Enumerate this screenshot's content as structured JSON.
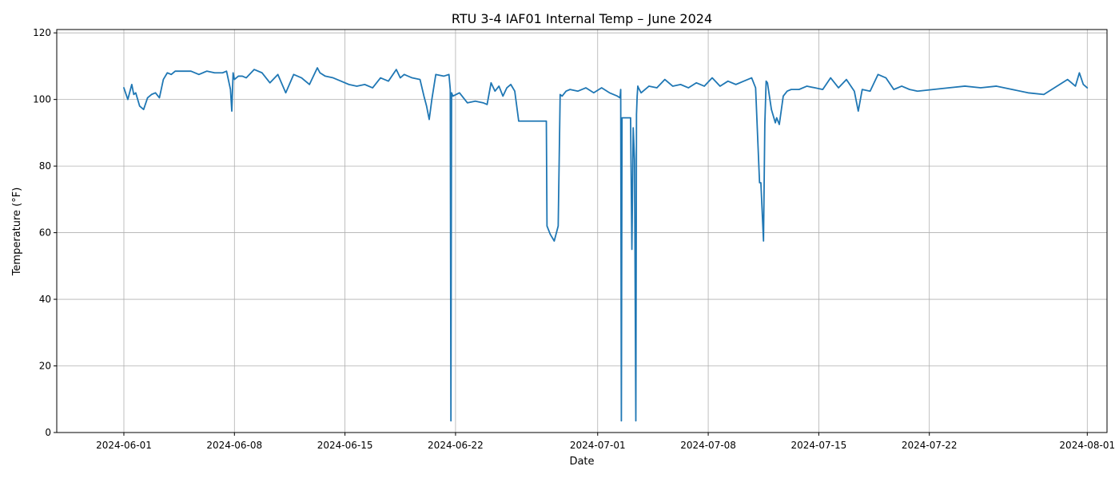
{
  "chart_data": {
    "type": "line",
    "title": "RTU 3-4 IAF01 Internal Temp – June 2024",
    "xlabel": "Date",
    "ylabel": "Temperature (°F)",
    "xlim": [
      "2024-05-27T18:00",
      "2024-08-02T06:00"
    ],
    "ylim": [
      0,
      121
    ],
    "grid": true,
    "color": "#1f77b4",
    "x_ticks": [
      "2024-06-01",
      "2024-06-08",
      "2024-06-15",
      "2024-06-22",
      "2024-07-01",
      "2024-07-08",
      "2024-07-15",
      "2024-07-22",
      "2024-08-01"
    ],
    "y_ticks": [
      0,
      20,
      40,
      60,
      80,
      100,
      120
    ],
    "series": [
      {
        "x": [
          "2024-06-01T00:00",
          "2024-06-01T06:00",
          "2024-06-01T12:00",
          "2024-06-01T15:00",
          "2024-06-01T18:00",
          "2024-06-02T00:00",
          "2024-06-02T06:00",
          "2024-06-02T12:00",
          "2024-06-02T18:00",
          "2024-06-03T00:00",
          "2024-06-03T06:00",
          "2024-06-03T12:00",
          "2024-06-03T18:00",
          "2024-06-04T00:00",
          "2024-06-04T06:00",
          "2024-06-04T18:00",
          "2024-06-05T06:00",
          "2024-06-05T18:00",
          "2024-06-06T06:00",
          "2024-06-06T18:00",
          "2024-06-07T06:00",
          "2024-06-07T12:00",
          "2024-06-07T18:00",
          "2024-06-07T20:00",
          "2024-06-07T22:00",
          "2024-06-08T00:00",
          "2024-06-08T06:00",
          "2024-06-08T12:00",
          "2024-06-08T18:00",
          "2024-06-09T06:00",
          "2024-06-09T18:00",
          "2024-06-10T06:00",
          "2024-06-10T18:00",
          "2024-06-11T06:00",
          "2024-06-11T18:00",
          "2024-06-12T06:00",
          "2024-06-12T18:00",
          "2024-06-13T06:00",
          "2024-06-13T10:00",
          "2024-06-13T18:00",
          "2024-06-14T06:00",
          "2024-06-14T18:00",
          "2024-06-15T06:00",
          "2024-06-15T18:00",
          "2024-06-16T06:00",
          "2024-06-16T18:00",
          "2024-06-17T06:00",
          "2024-06-17T18:00",
          "2024-06-18T06:00",
          "2024-06-18T12:00",
          "2024-06-18T18:00",
          "2024-06-19T06:00",
          "2024-06-19T18:00",
          "2024-06-20T00:00",
          "2024-06-20T04:00",
          "2024-06-20T08:00",
          "2024-06-20T12:00",
          "2024-06-20T18:00",
          "2024-06-21T06:00",
          "2024-06-21T14:00",
          "2024-06-21T16:00",
          "2024-06-21T17:00",
          "2024-06-21T18:00",
          "2024-06-21T20:00",
          "2024-06-22T06:00",
          "2024-06-22T18:00",
          "2024-06-23T06:00",
          "2024-06-23T18:00",
          "2024-06-24T00:00",
          "2024-06-24T06:00",
          "2024-06-24T12:00",
          "2024-06-24T18:00",
          "2024-06-25T00:00",
          "2024-06-25T06:00",
          "2024-06-25T12:00",
          "2024-06-25T18:00",
          "2024-06-26T00:00",
          "2024-06-27T18:00",
          "2024-06-27T19:00",
          "2024-06-28T00:00",
          "2024-06-28T06:00",
          "2024-06-28T12:00",
          "2024-06-28T15:00",
          "2024-06-28T18:00",
          "2024-06-29T00:00",
          "2024-06-29T06:00",
          "2024-06-29T18:00",
          "2024-06-30T06:00",
          "2024-06-30T18:00",
          "2024-07-01T06:00",
          "2024-07-01T18:00",
          "2024-07-02T06:00",
          "2024-07-02T10:00",
          "2024-07-02T11:00",
          "2024-07-02T12:00",
          "2024-07-02T13:00",
          "2024-07-03T00:00",
          "2024-07-03T02:00",
          "2024-07-03T04:00",
          "2024-07-03T06:00",
          "2024-07-03T08:00",
          "2024-07-03T10:00",
          "2024-07-03T11:00",
          "2024-07-03T12:00",
          "2024-07-03T13:00",
          "2024-07-03T14:00",
          "2024-07-03T18:00",
          "2024-07-04T06:00",
          "2024-07-04T18:00",
          "2024-07-05T06:00",
          "2024-07-05T18:00",
          "2024-07-06T06:00",
          "2024-07-06T18:00",
          "2024-07-07T06:00",
          "2024-07-07T18:00",
          "2024-07-08T06:00",
          "2024-07-08T18:00",
          "2024-07-09T06:00",
          "2024-07-09T18:00",
          "2024-07-10T06:00",
          "2024-07-10T18:00",
          "2024-07-11T00:00",
          "2024-07-11T06:00",
          "2024-07-11T08:00",
          "2024-07-11T12:00",
          "2024-07-11T14:00",
          "2024-07-11T16:00",
          "2024-07-11T18:00",
          "2024-07-12T00:00",
          "2024-07-12T06:00",
          "2024-07-12T08:00",
          "2024-07-12T12:00",
          "2024-07-12T18:00",
          "2024-07-13T00:00",
          "2024-07-13T06:00",
          "2024-07-13T18:00",
          "2024-07-14T06:00",
          "2024-07-14T18:00",
          "2024-07-15T06:00",
          "2024-07-15T18:00",
          "2024-07-16T06:00",
          "2024-07-16T18:00",
          "2024-07-17T06:00",
          "2024-07-17T12:00",
          "2024-07-17T18:00",
          "2024-07-18T06:00",
          "2024-07-18T18:00",
          "2024-07-19T06:00",
          "2024-07-19T18:00",
          "2024-07-20T06:00",
          "2024-07-20T18:00",
          "2024-07-21T06:00",
          "2024-07-22T06:00",
          "2024-07-23T06:00",
          "2024-07-24T06:00",
          "2024-07-25T06:00",
          "2024-07-26T06:00",
          "2024-07-27T06:00",
          "2024-07-28T06:00",
          "2024-07-29T06:00",
          "2024-07-29T18:00",
          "2024-07-30T06:00",
          "2024-07-30T18:00",
          "2024-07-31T06:00",
          "2024-07-31T12:00",
          "2024-07-31T18:00",
          "2024-08-01T00:00"
        ],
        "y": [
          103.5,
          100.0,
          104.5,
          101.5,
          102.0,
          98.0,
          97.0,
          100.5,
          101.5,
          102.0,
          100.5,
          106.0,
          108.0,
          107.5,
          108.5,
          108.5,
          108.5,
          107.5,
          108.5,
          108.0,
          108.0,
          108.5,
          103.0,
          96.5,
          108.0,
          106.0,
          107.0,
          107.0,
          106.5,
          109.0,
          108.0,
          105.0,
          107.5,
          102.0,
          107.5,
          106.5,
          104.5,
          109.5,
          108.0,
          107.0,
          106.5,
          105.5,
          104.5,
          104.0,
          104.5,
          103.5,
          106.5,
          105.5,
          109.0,
          106.5,
          107.5,
          106.5,
          106.0,
          101.0,
          98.0,
          94.0,
          100.0,
          107.5,
          107.0,
          107.5,
          103.0,
          3.5,
          102.0,
          101.0,
          102.0,
          99.0,
          99.5,
          99.0,
          98.5,
          105.0,
          102.5,
          104.0,
          101.0,
          103.5,
          104.5,
          102.5,
          93.5,
          93.5,
          62.0,
          59.5,
          57.5,
          62.0,
          101.5,
          101.0,
          102.5,
          103.0,
          102.5,
          103.5,
          102.0,
          103.5,
          102.0,
          101.0,
          100.5,
          103.0,
          3.5,
          94.5,
          94.5,
          94.5,
          55.0,
          91.5,
          82.0,
          3.5,
          95.5,
          101.0,
          104.0,
          103.5,
          102.0,
          104.0,
          103.5,
          106.0,
          104.0,
          104.5,
          103.5,
          105.0,
          104.0,
          106.5,
          104.0,
          105.5,
          104.5,
          105.5,
          106.5,
          103.5,
          75.0,
          75.0,
          57.5,
          92.5,
          105.5,
          105.0,
          97.0,
          93.0,
          94.5,
          92.5,
          101.0,
          102.5,
          103.0,
          103.0,
          104.0,
          103.5,
          103.0,
          106.5,
          103.5,
          106.0,
          102.5,
          96.5,
          103.0,
          102.5,
          107.5,
          106.5,
          103.0,
          104.0,
          103.0,
          102.5,
          103.0,
          103.5,
          104.0,
          103.5,
          104.0,
          103.0,
          102.0,
          101.5,
          103.0,
          104.5,
          106.0,
          104.0,
          108.0,
          104.5,
          103.5
        ]
      }
    ]
  }
}
